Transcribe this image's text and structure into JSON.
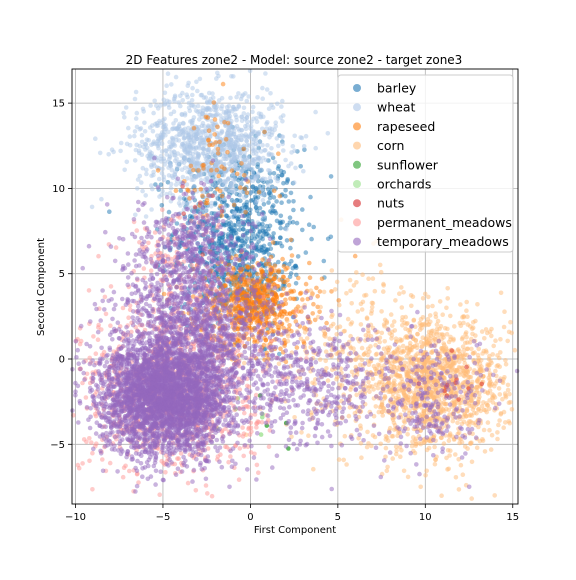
{
  "chart_data": {
    "type": "scatter",
    "title": "2D Features zone2 - Model: source zone2 - target zone3",
    "xlabel": "First Component",
    "ylabel": "Second Component",
    "xlim": [
      -10.2,
      15.3
    ],
    "ylim": [
      -8.5,
      17.0
    ],
    "xticks": [
      -10,
      -5,
      0,
      5,
      10,
      15
    ],
    "xtick_labels": [
      "−10",
      "−5",
      "0",
      "5",
      "10",
      "15"
    ],
    "yticks": [
      -5,
      0,
      5,
      10,
      15
    ],
    "ytick_labels": [
      "−5",
      "0",
      "5",
      "10",
      "15"
    ],
    "grid": true,
    "legend_position": "top-right",
    "series": [
      {
        "name": "barley",
        "color": "#1f77b4",
        "clusters": [
          {
            "cx": -0.8,
            "cy": 7.5,
            "sx": 1.8,
            "sy": 2.4,
            "n": 750
          },
          {
            "cx": -0.5,
            "cy": 4.5,
            "sx": 1.4,
            "sy": 1.5,
            "n": 150
          }
        ]
      },
      {
        "name": "wheat",
        "color": "#aec7e8",
        "clusters": [
          {
            "cx": -2.3,
            "cy": 12.5,
            "sx": 2.1,
            "sy": 1.7,
            "n": 1100
          }
        ]
      },
      {
        "name": "rapeseed",
        "color": "#ff7f0e",
        "clusters": [
          {
            "cx": 0.2,
            "cy": 3.2,
            "sx": 1.6,
            "sy": 1.3,
            "n": 650
          },
          {
            "cx": -2.0,
            "cy": 11.0,
            "sx": 1.5,
            "sy": 2.0,
            "n": 70
          }
        ]
      },
      {
        "name": "corn",
        "color": "#ffbb78",
        "clusters": [
          {
            "cx": 10.5,
            "cy": -1.5,
            "sx": 2.1,
            "sy": 1.9,
            "n": 1400
          },
          {
            "cx": 5.5,
            "cy": 0.5,
            "sx": 2.2,
            "sy": 2.5,
            "n": 250
          }
        ]
      },
      {
        "name": "sunflower",
        "color": "#2ca02c",
        "clusters": [
          {
            "cx": 1.5,
            "cy": -3.5,
            "sx": 1.0,
            "sy": 1.0,
            "n": 4
          }
        ]
      },
      {
        "name": "orchards",
        "color": "#98df8a",
        "clusters": [
          {
            "cx": 0.0,
            "cy": -3.0,
            "sx": 1.5,
            "sy": 1.5,
            "n": 6
          }
        ]
      },
      {
        "name": "nuts",
        "color": "#d62728",
        "clusters": [
          {
            "cx": 12.0,
            "cy": -1.0,
            "sx": 1.0,
            "sy": 1.0,
            "n": 12
          },
          {
            "cx": -3.0,
            "cy": 8.5,
            "sx": 1.2,
            "sy": 1.2,
            "n": 8
          }
        ]
      },
      {
        "name": "permanent_meadows",
        "color": "#ff9896",
        "clusters": [
          {
            "cx": -4.5,
            "cy": -1.8,
            "sx": 2.6,
            "sy": 2.5,
            "n": 1000
          },
          {
            "cx": -4.5,
            "cy": 5.0,
            "sx": 1.5,
            "sy": 2.2,
            "n": 150
          }
        ]
      },
      {
        "name": "temporary_meadows",
        "color": "#9467bd",
        "clusters": [
          {
            "cx": -4.8,
            "cy": -2.2,
            "sx": 1.9,
            "sy": 1.7,
            "n": 3200
          },
          {
            "cx": -3.0,
            "cy": 2.0,
            "sx": 2.2,
            "sy": 2.3,
            "n": 1100
          },
          {
            "cx": -3.5,
            "cy": 6.5,
            "sx": 1.5,
            "sy": 1.8,
            "n": 350
          },
          {
            "cx": 3.5,
            "cy": -1.5,
            "sx": 2.5,
            "sy": 1.8,
            "n": 450
          },
          {
            "cx": 10.5,
            "cy": -2.5,
            "sx": 1.7,
            "sy": 1.6,
            "n": 220
          }
        ]
      }
    ]
  }
}
